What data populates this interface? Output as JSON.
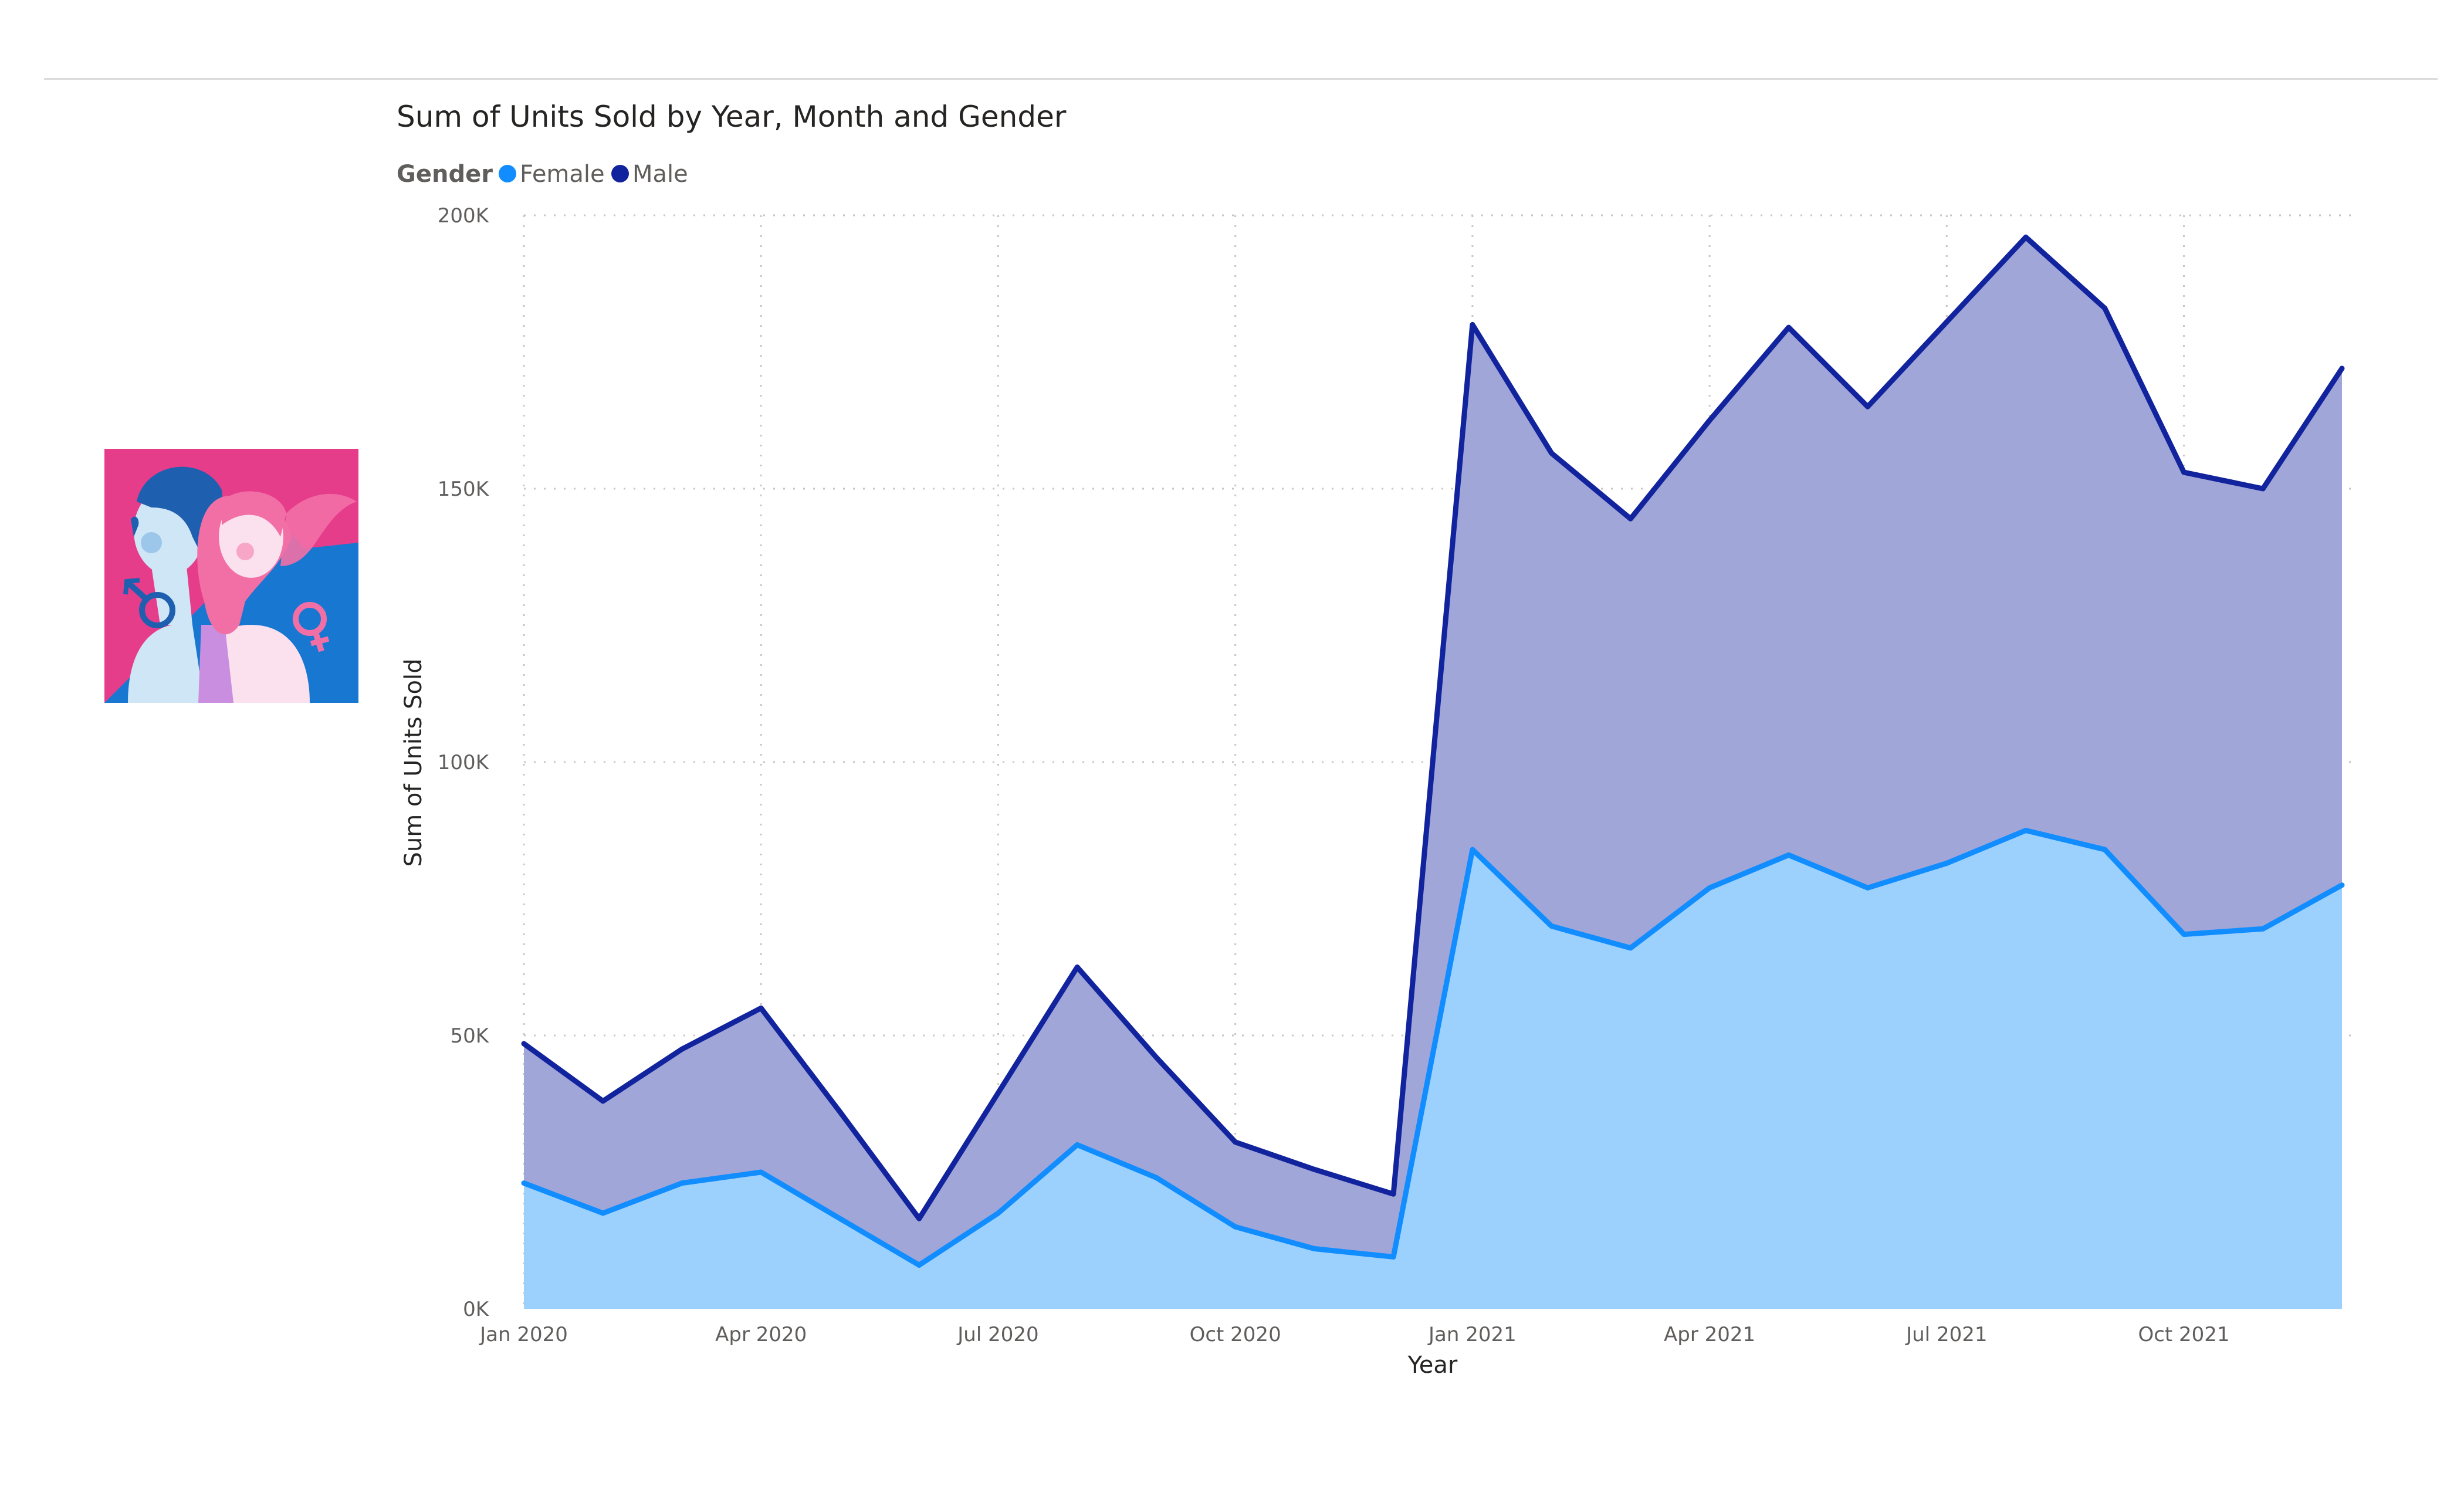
{
  "chart_data": {
    "type": "area",
    "stacked": true,
    "title": "Sum of Units Sold by Year, Month and Gender",
    "xlabel": "Year",
    "ylabel": "Sum of Units Sold",
    "legend": {
      "title": "Gender",
      "placement": "top-left"
    },
    "x": [
      "Jan 2020",
      "Feb 2020",
      "Mar 2020",
      "Apr 2020",
      "May 2020",
      "Jun 2020",
      "Jul 2020",
      "Aug 2020",
      "Sep 2020",
      "Oct 2020",
      "Nov 2020",
      "Dec 2020",
      "Jan 2021",
      "Feb 2021",
      "Mar 2021",
      "Apr 2021",
      "May 2021",
      "Jun 2021",
      "Jul 2021",
      "Aug 2021",
      "Sep 2021",
      "Oct 2021",
      "Nov 2021",
      "Dec 2021"
    ],
    "x_ticks": [
      "Jan 2020",
      "Apr 2020",
      "Jul 2020",
      "Oct 2020",
      "Jan 2021",
      "Apr 2021",
      "Jul 2021",
      "Oct 2021"
    ],
    "x_tick_indices": [
      0,
      3,
      6,
      9,
      12,
      15,
      18,
      21
    ],
    "y_ticks": [
      "0K",
      "50K",
      "100K",
      "150K",
      "200K"
    ],
    "y_tick_values": [
      0,
      50000,
      100000,
      150000,
      200000
    ],
    "ylim": [
      0,
      200000
    ],
    "grid": true,
    "series": [
      {
        "name": "Female",
        "color": "#118dff",
        "fill": "#9dd1fd",
        "values": [
          23000,
          17500,
          23000,
          25000,
          16500,
          8000,
          17500,
          30000,
          24000,
          15000,
          11000,
          9500,
          84000,
          70000,
          66000,
          77000,
          83000,
          77000,
          81500,
          87500,
          84000,
          68500,
          69500,
          77500
        ]
      },
      {
        "name": "Male",
        "color": "#12239e",
        "fill": "#a0a6d8",
        "values": [
          25500,
          20500,
          24500,
          30000,
          19500,
          8500,
          22000,
          32500,
          22000,
          15500,
          14500,
          11500,
          96000,
          86500,
          78500,
          85500,
          96500,
          88000,
          99000,
          108500,
          99000,
          84500,
          80500,
          94500
        ]
      }
    ]
  },
  "illustration": {
    "description_icon": "gender-illustration",
    "colors": {
      "pink": "#e63d8b",
      "blue": "#1877d1",
      "male_skin": "#cfe6f7",
      "female_hair": "#f26fa6"
    }
  }
}
